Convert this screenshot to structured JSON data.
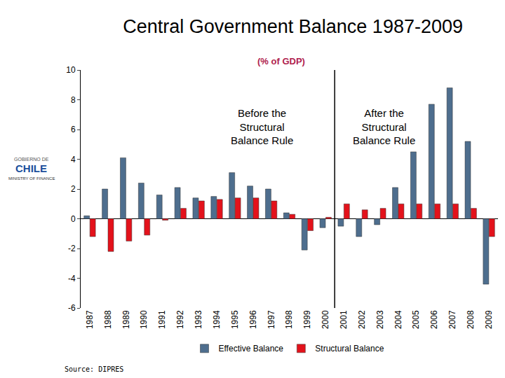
{
  "chart_data": {
    "type": "bar",
    "title": "Central Government Balance 1987-2009",
    "subtitle": "(% of GDP)",
    "categories": [
      "1987",
      "1988",
      "1989",
      "1990",
      "1991",
      "1992",
      "1993",
      "1994",
      "1995",
      "1996",
      "1997",
      "1998",
      "1999",
      "2000",
      "2001",
      "2002",
      "2003",
      "2004",
      "2005",
      "2006",
      "2007",
      "2008",
      "2009"
    ],
    "series": [
      {
        "name": "Effective Balance",
        "color": "#4e6e8e",
        "values": [
          0.2,
          2.0,
          4.1,
          2.4,
          1.6,
          2.1,
          1.4,
          1.5,
          3.1,
          2.2,
          2.0,
          0.4,
          -2.1,
          -0.6,
          -0.5,
          -1.2,
          -0.4,
          2.1,
          4.5,
          7.7,
          8.8,
          5.2,
          -4.4
        ]
      },
      {
        "name": "Structural Balance",
        "color": "#e3121b",
        "values": [
          -1.2,
          -2.2,
          -1.5,
          -1.1,
          -0.1,
          0.7,
          1.2,
          1.3,
          1.4,
          1.4,
          1.2,
          0.3,
          -0.8,
          0.1,
          1.0,
          0.6,
          0.7,
          1.0,
          1.0,
          1.0,
          1.0,
          0.7,
          -1.2
        ]
      }
    ],
    "ylim": [
      -6,
      10
    ],
    "yticks": [
      -6,
      -4,
      -2,
      0,
      2,
      4,
      6,
      8,
      10
    ],
    "grid": false,
    "legend": "bottom",
    "annotations": [
      "Before the\nStructural\nBalance Rule",
      "After the\nStructural\nBalance Rule"
    ],
    "source": "Source: DIPRES",
    "logo": [
      "GOBIERNO DE",
      "CHILE",
      "MINISTRY OF FINANCE"
    ]
  }
}
